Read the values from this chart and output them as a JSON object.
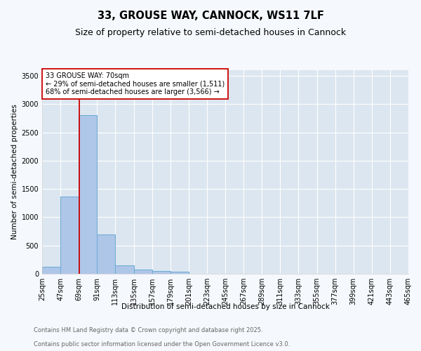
{
  "title": "33, GROUSE WAY, CANNOCK, WS11 7LF",
  "subtitle": "Size of property relative to semi-detached houses in Cannock",
  "xlabel": "Distribution of semi-detached houses by size in Cannock",
  "ylabel": "Number of semi-detached properties",
  "bar_color": "#aec6e8",
  "bar_edge_color": "#6aaad4",
  "bg_color": "#dce6f0",
  "grid_color": "#ffffff",
  "annotation_line_color": "#cc0000",
  "annotation_box_line_color": "#cc0000",
  "annotation_text": "33 GROUSE WAY: 70sqm\n← 29% of semi-detached houses are smaller (1,511)\n68% of semi-detached houses are larger (3,566) →",
  "property_size": 70,
  "bins": [
    25,
    47,
    69,
    91,
    113,
    135,
    157,
    179,
    201,
    223,
    245,
    267,
    289,
    311,
    333,
    355,
    377,
    399,
    421,
    443,
    465
  ],
  "bin_labels": [
    "25sqm",
    "47sqm",
    "69sqm",
    "91sqm",
    "113sqm",
    "135sqm",
    "157sqm",
    "179sqm",
    "201sqm",
    "223sqm",
    "245sqm",
    "267sqm",
    "289sqm",
    "311sqm",
    "333sqm",
    "355sqm",
    "377sqm",
    "399sqm",
    "421sqm",
    "443sqm",
    "465sqm"
  ],
  "counts": [
    130,
    1370,
    2800,
    700,
    155,
    80,
    45,
    35,
    0,
    0,
    0,
    0,
    0,
    0,
    0,
    0,
    0,
    0,
    0,
    0
  ],
  "ylim": [
    0,
    3600
  ],
  "yticks": [
    0,
    500,
    1000,
    1500,
    2000,
    2500,
    3000,
    3500
  ],
  "footer1": "Contains HM Land Registry data © Crown copyright and database right 2025.",
  "footer2": "Contains public sector information licensed under the Open Government Licence v3.0.",
  "title_fontsize": 10.5,
  "subtitle_fontsize": 9,
  "axis_label_fontsize": 7.5,
  "tick_fontsize": 7,
  "footer_fontsize": 6,
  "fig_bg_color": "#f5f8fc"
}
